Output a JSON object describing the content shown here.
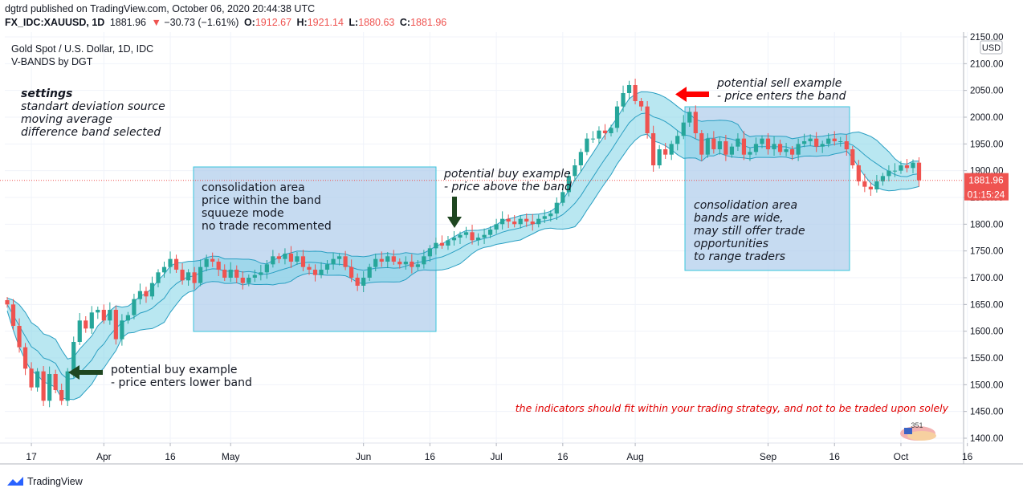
{
  "header": {
    "publisher_line": "dgtrd published on TradingView.com, October 06, 2020 20:44:38 UTC",
    "symbol": "FX_IDC:XAUUSD, 1D",
    "last": "1881.96",
    "change": "−30.73 (−1.61%)",
    "open_label": "O:",
    "open": "1912.67",
    "high_label": "H:",
    "high": "1921.14",
    "low_label": "L:",
    "low": "1880.63",
    "close_label": "C:",
    "close": "1881.96"
  },
  "legend": {
    "instrument": "Gold Spot / U.S. Dollar, 1D, IDC",
    "indicator": "V-BANDS by DGT"
  },
  "annotations": {
    "settings_title": "settings",
    "settings_lines": [
      "standart deviation source",
      "moving average",
      "difference band selected"
    ],
    "consolidation1": [
      "consolidation area",
      "price within the band",
      "squueze mode",
      "no trade recommented"
    ],
    "buy_above": [
      "potential buy example",
      "- price above the band"
    ],
    "sell_example": [
      "potential sell example",
      "- price enters the band"
    ],
    "consolidation2": [
      "consolidation area",
      "bands are wide,",
      "may still offer trade",
      "opportunities",
      "to range traders"
    ],
    "buy_lower": [
      "potential buy example",
      "- price enters lower band"
    ],
    "disclaimer": "the indicators should fit within your trading strategy, and not to be traded upon solely",
    "badge_number": "351"
  },
  "price_axis": {
    "currency": "USD",
    "last_price_label": "1881.96",
    "countdown_label": "01:15:24"
  },
  "footer": {
    "brand": "TradingView"
  },
  "colors": {
    "up": "#26a69a",
    "down": "#ef5350",
    "band_fill": "#7fd3e6",
    "band_line": "#2a9fc2",
    "box_fill": "#b3cfec",
    "box_border": "#38c6dc",
    "arrow_green": "#1e4620",
    "arrow_red": "#ff0000"
  },
  "chart_data": {
    "type": "candlestick",
    "title": "Gold Spot / U.S. Dollar, 1D, IDC",
    "ylim": [
      1390,
      2160
    ],
    "y_ticks": [
      1400,
      1450,
      1500,
      1550,
      1600,
      1650,
      1700,
      1750,
      1800,
      1850,
      1900,
      1950,
      2000,
      2050,
      2100,
      2150
    ],
    "x_ticks": [
      {
        "label": "17",
        "idx": 4
      },
      {
        "label": "Apr",
        "idx": 16
      },
      {
        "label": "16",
        "idx": 27
      },
      {
        "label": "May",
        "idx": 37
      },
      {
        "label": "Jun",
        "idx": 59
      },
      {
        "label": "16",
        "idx": 70
      },
      {
        "label": "Jul",
        "idx": 81
      },
      {
        "label": "16",
        "idx": 92
      },
      {
        "label": "Aug",
        "idx": 104
      },
      {
        "label": "Sep",
        "idx": 126
      },
      {
        "label": "16",
        "idx": 137
      },
      {
        "label": "Oct",
        "idx": 148
      },
      {
        "label": "16",
        "idx": 159
      }
    ],
    "last_price": 1881.96,
    "closes": [
      1650,
      1610,
      1570,
      1530,
      1495,
      1525,
      1470,
      1520,
      1490,
      1470,
      1525,
      1580,
      1620,
      1605,
      1635,
      1640,
      1620,
      1640,
      1585,
      1620,
      1630,
      1660,
      1675,
      1665,
      1690,
      1710,
      1720,
      1735,
      1715,
      1695,
      1710,
      1690,
      1720,
      1735,
      1730,
      1715,
      1700,
      1715,
      1700,
      1690,
      1700,
      1705,
      1710,
      1725,
      1740,
      1735,
      1745,
      1730,
      1740,
      1720,
      1715,
      1705,
      1715,
      1725,
      1735,
      1740,
      1720,
      1700,
      1685,
      1700,
      1720,
      1735,
      1730,
      1740,
      1730,
      1725,
      1730,
      1720,
      1725,
      1740,
      1755,
      1765,
      1760,
      1770,
      1775,
      1780,
      1785,
      1770,
      1775,
      1780,
      1790,
      1800,
      1810,
      1805,
      1800,
      1810,
      1805,
      1800,
      1810,
      1815,
      1820,
      1840,
      1860,
      1890,
      1910,
      1935,
      1960,
      1960,
      1975,
      1970,
      1980,
      2020,
      2045,
      2060,
      2030,
      2020,
      1970,
      1910,
      1940,
      1930,
      1950,
      1965,
      1990,
      2010,
      1970,
      1930,
      1960,
      1940,
      1955,
      1930,
      1945,
      1960,
      1930,
      1935,
      1950,
      1960,
      1940,
      1950,
      1935,
      1940,
      1930,
      1950,
      1955,
      1960,
      1945,
      1950,
      1960,
      1955,
      1955,
      1940,
      1910,
      1880,
      1870,
      1865,
      1880,
      1890,
      1900,
      1900,
      1910,
      1905,
      1915,
      1882
    ]
  }
}
